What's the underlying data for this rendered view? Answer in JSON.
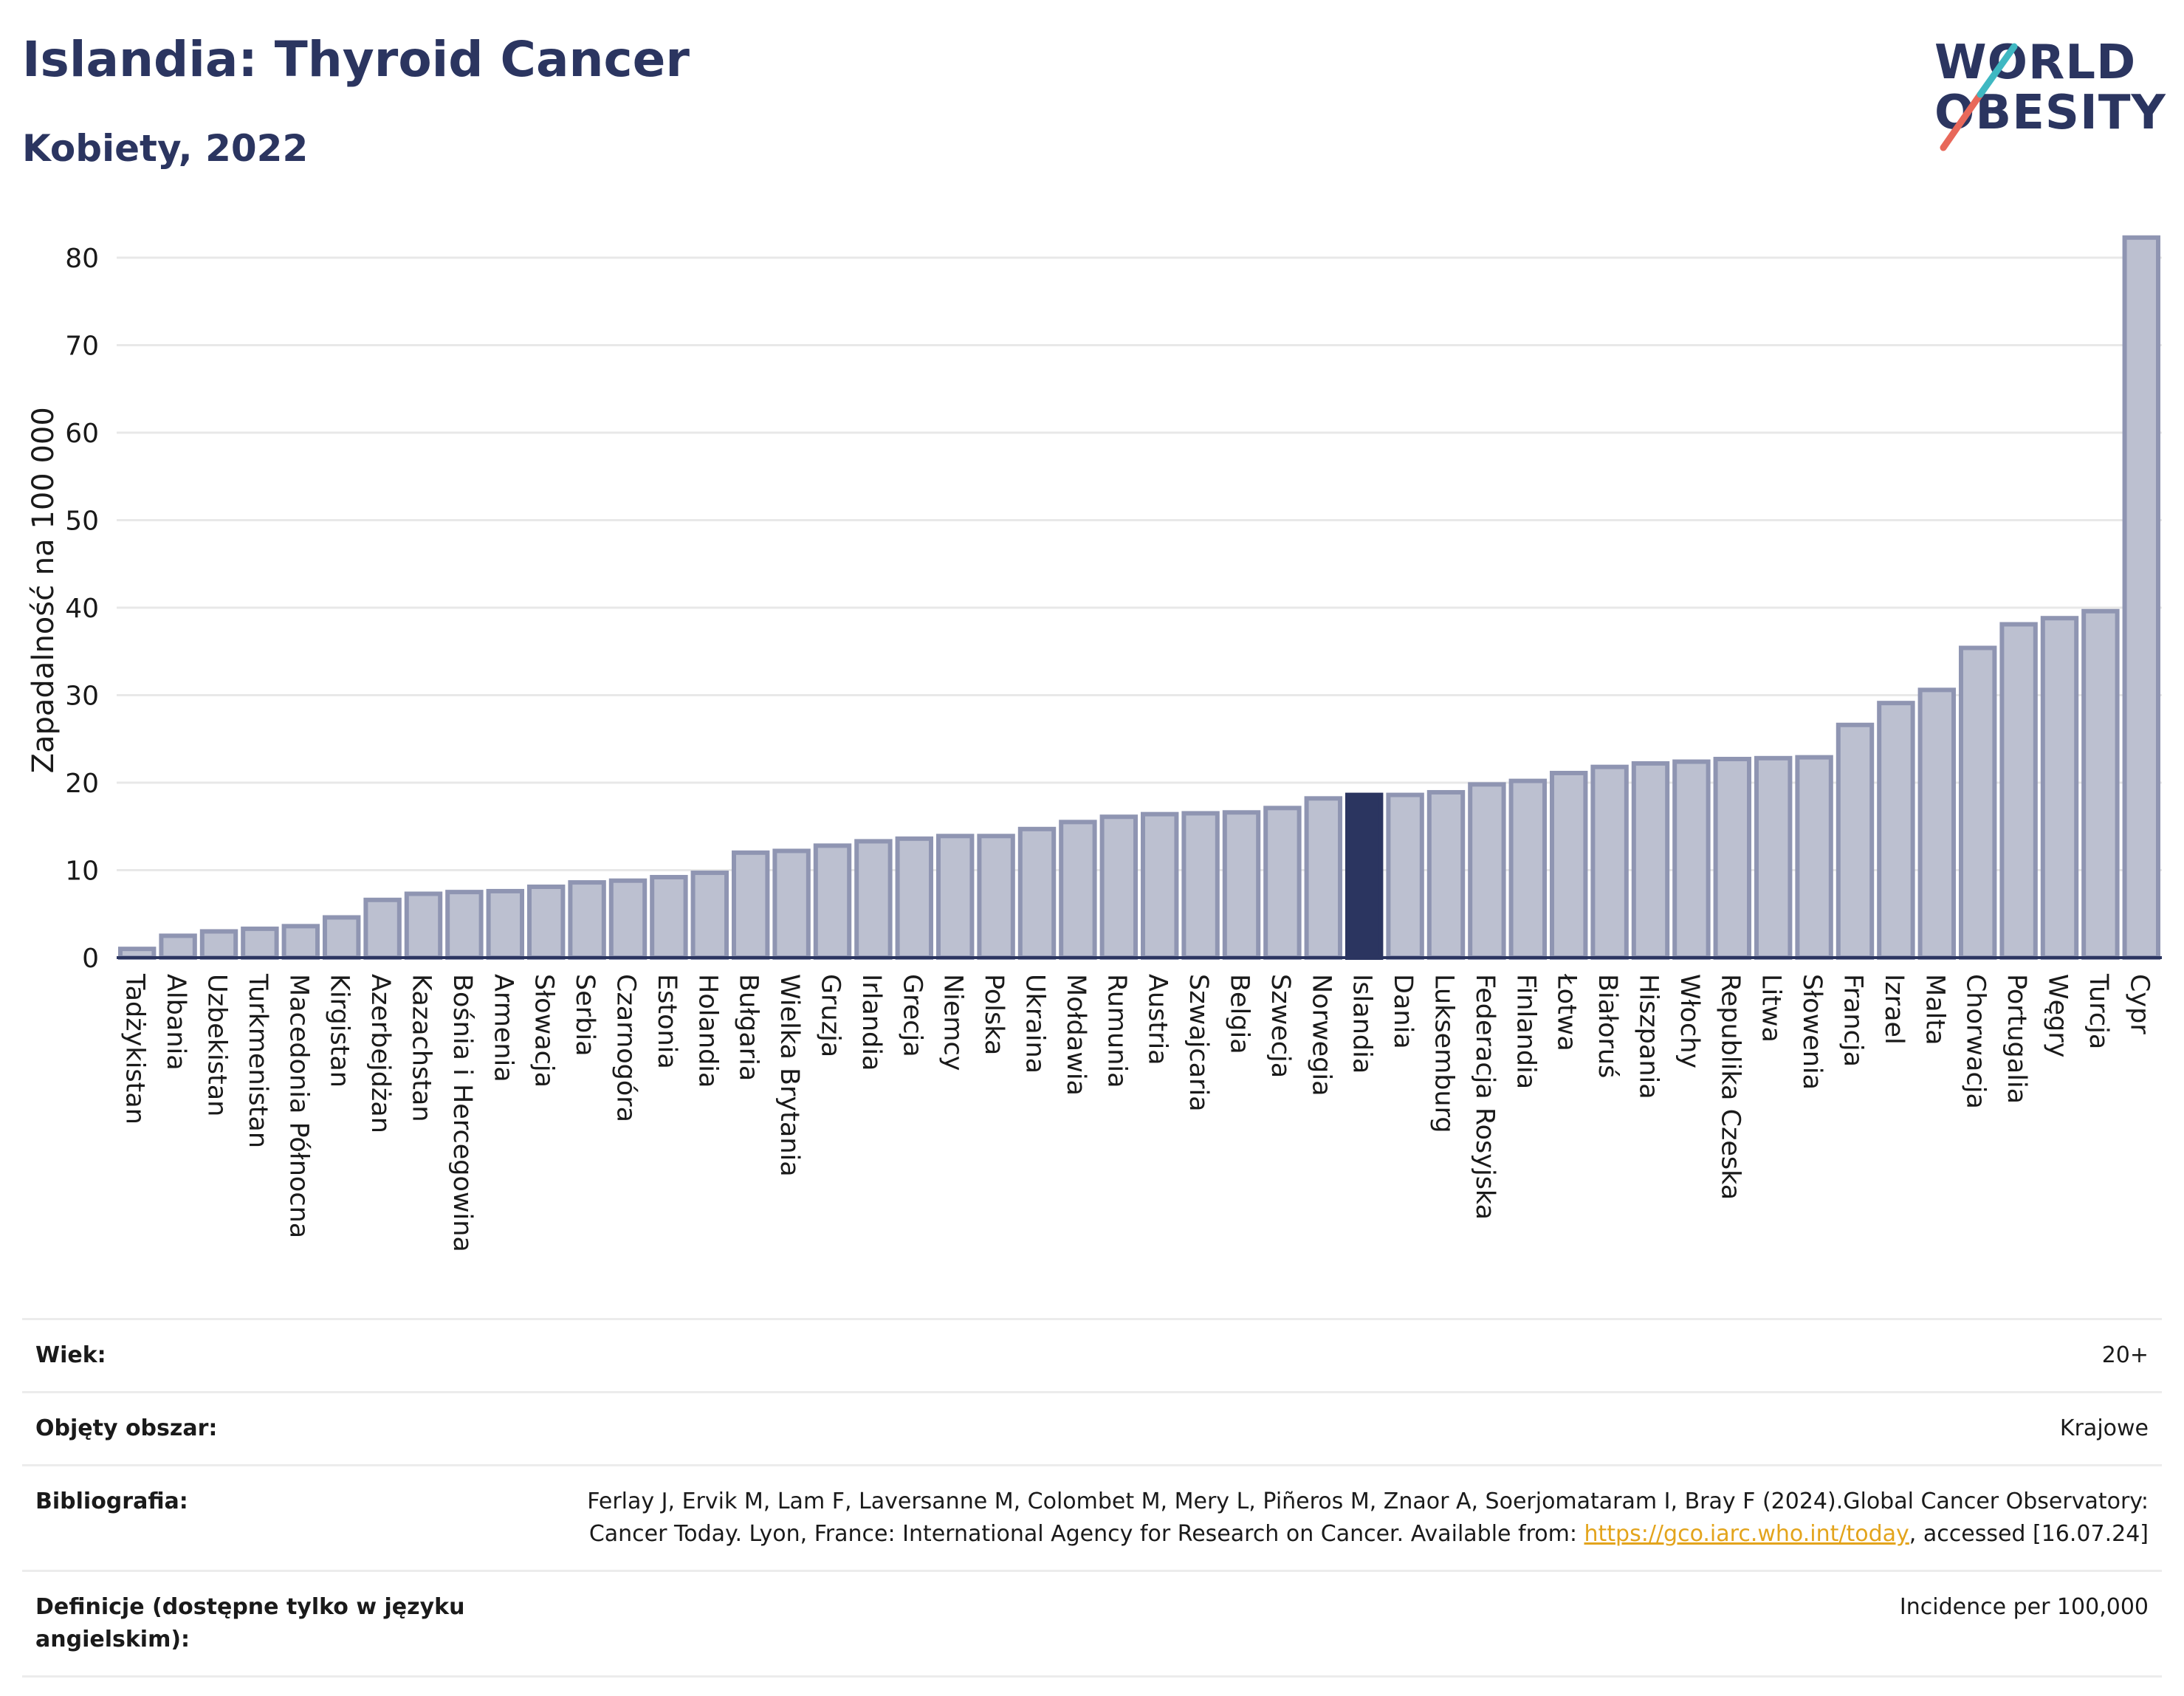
{
  "header": {
    "title": "Islandia: Thyroid Cancer",
    "subtitle": "Kobiety, 2022"
  },
  "logo": {
    "line1": "WORLD",
    "line2": "OBESITY"
  },
  "colors": {
    "bar": "#bcc0d0",
    "bar_border": "#8f95b2",
    "highlight": "#2b3560",
    "grid": "#e8e8e8",
    "text": "#1a1a1a",
    "link": "#e3a41c"
  },
  "chart_data": {
    "type": "bar",
    "ylabel": "Zapadalność na 100 000",
    "ylim": [
      0,
      83
    ],
    "yticks": [
      0,
      10,
      20,
      30,
      40,
      50,
      60,
      70,
      80
    ],
    "grid": true,
    "highlight": "Islandia",
    "categories": [
      "Tadżykistan",
      "Albania",
      "Uzbekistan",
      "Turkmenistan",
      "Macedonia Północna",
      "Kirgistan",
      "Azerbejdżan",
      "Kazachstan",
      "Bośnia i Hercegowina",
      "Armenia",
      "Słowacja",
      "Serbia",
      "Czarnogóra",
      "Estonia",
      "Holandia",
      "Bułgaria",
      "Wielka Brytania",
      "Gruzja",
      "Irlandia",
      "Grecja",
      "Niemcy",
      "Polska",
      "Ukraina",
      "Mołdawia",
      "Rumunia",
      "Austria",
      "Szwajcaria",
      "Belgia",
      "Szwecja",
      "Norwegia",
      "Islandia",
      "Dania",
      "Luksemburg",
      "Federacja Rosyjska",
      "Finlandia",
      "Łotwa",
      "Białoruś",
      "Hiszpania",
      "Włochy",
      "Republika Czeska",
      "Litwa",
      "Słowenia",
      "Francja",
      "Izrael",
      "Malta",
      "Chorwacja",
      "Portugalia",
      "Węgry",
      "Turcja",
      "Cypr"
    ],
    "values": [
      1.0,
      2.5,
      3.0,
      3.3,
      3.6,
      4.6,
      6.6,
      7.3,
      7.5,
      7.6,
      8.1,
      8.6,
      8.8,
      9.2,
      9.7,
      12.0,
      12.2,
      12.8,
      13.3,
      13.6,
      13.9,
      13.9,
      14.7,
      15.5,
      16.1,
      16.4,
      16.5,
      16.6,
      17.1,
      18.2,
      18.6,
      18.6,
      18.9,
      19.8,
      20.2,
      21.1,
      21.8,
      22.2,
      22.4,
      22.7,
      22.8,
      22.9,
      26.6,
      29.1,
      30.6,
      35.4,
      38.1,
      38.8,
      39.6,
      82.3
    ]
  },
  "meta": {
    "age_label": "Wiek:",
    "age_value": "20+",
    "area_label": "Objęty obszar:",
    "area_value": "Krajowe",
    "bib_label": "Bibliografia:",
    "bib_text1": "Ferlay J, Ervik M, Lam F, Laversanne M, Colombet M, Mery L, Piñeros M, Znaor A, Soerjomataram I, Bray F (2024).Global Cancer Observatory: Cancer Today. Lyon, France: International Agency for Research on Cancer. Available from: ",
    "bib_link": "https://gco.iarc.who.int/today",
    "bib_text2": ", accessed [16.07.24]",
    "def_label": "Definicje (dostępne tylko w języku angielskim):",
    "def_value": "Incidence per 100,000"
  }
}
